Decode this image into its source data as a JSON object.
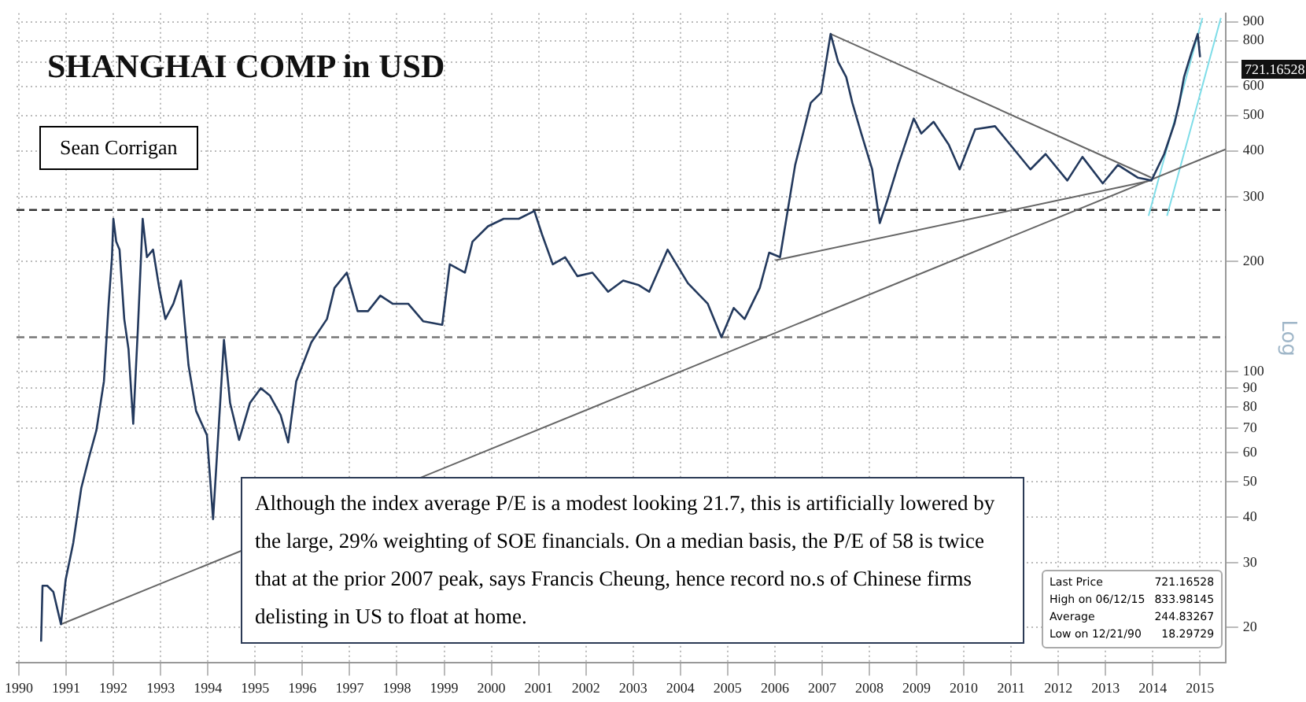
{
  "chart_data": {
    "type": "line",
    "title": "SHANGHAI COMP in USD",
    "ylabel": "Log",
    "annotations": [
      "Sean Corrigan",
      "Although the index average P/E is a modest looking 21.7, this is artificially lowered by the large, 29% weighting of SOE financials. On a median basis, the P/E of 58 is twice that at the prior 2007 peak, says Francis Cheung, hence record no.s of Chinese firms delisting in US to float at home.",
      "721.16528",
      "Last Price",
      "721.16528",
      "High on 06/12/15",
      "833.98145",
      "Average",
      "244.83267",
      "Low on 12/21/90",
      "18.29729"
    ],
    "log": "y",
    "grid": true,
    "legend": false,
    "marker": "none",
    "xlim": [
      1990.45,
      2016.04
    ],
    "xticks": [
      {
        "value": 1990.5,
        "label": "1990"
      },
      {
        "value": 1991.5,
        "label": "1991"
      },
      {
        "value": 1992.5,
        "label": "1992"
      },
      {
        "value": 1993.5,
        "label": "1993"
      },
      {
        "value": 1994.5,
        "label": "1994"
      },
      {
        "value": 1995.5,
        "label": "1995"
      },
      {
        "value": 1996.5,
        "label": "1996"
      },
      {
        "value": 1997.5,
        "label": "1997"
      },
      {
        "value": 1998.5,
        "label": "1998"
      },
      {
        "value": 1999.5,
        "label": "1999"
      },
      {
        "value": 2000.5,
        "label": "2000"
      },
      {
        "value": 2001.5,
        "label": "2001"
      },
      {
        "value": 2002.5,
        "label": "2002"
      },
      {
        "value": 2003.5,
        "label": "2003"
      },
      {
        "value": 2004.5,
        "label": "2004"
      },
      {
        "value": 2005.5,
        "label": "2005"
      },
      {
        "value": 2006.5,
        "label": "2006"
      },
      {
        "value": 2007.5,
        "label": "2007"
      },
      {
        "value": 2008.5,
        "label": "2008"
      },
      {
        "value": 2009.5,
        "label": "2009"
      },
      {
        "value": 2010.5,
        "label": "2010"
      },
      {
        "value": 2011.5,
        "label": "2011"
      },
      {
        "value": 2012.5,
        "label": "2012"
      },
      {
        "value": 2013.5,
        "label": "2013"
      },
      {
        "value": 2014.5,
        "label": "2014"
      },
      {
        "value": 2015.5,
        "label": "2015"
      }
    ],
    "ylim": [
      16,
      950
    ],
    "yticks": [
      20,
      30,
      40,
      50,
      60,
      70,
      80,
      90,
      100,
      200,
      300,
      400,
      500,
      600,
      {
        "value": 700,
        "label": null
      },
      800,
      900
    ],
    "ref_lines": [
      {
        "axis": "y",
        "value": 276,
        "color": "#333333",
        "line_style": "dashed"
      },
      {
        "axis": "y",
        "value": 124,
        "color": "#777777",
        "line_style": "dashed"
      }
    ],
    "series": [
      {
        "color": "#23395d",
        "x": [
          1990.97,
          1991.0,
          1991.1,
          1991.23,
          1991.39,
          1991.49,
          1991.65,
          1991.82,
          1991.98,
          1992.14,
          1992.3,
          1992.4,
          1992.47,
          1992.5,
          1992.56,
          1992.63,
          1992.73,
          1992.82,
          1992.92,
          1993.02,
          1993.12,
          1993.21,
          1993.34,
          1993.47,
          1993.6,
          1993.77,
          1993.93,
          1994.09,
          1994.25,
          1994.48,
          1994.61,
          1994.77,
          1994.84,
          1994.97,
          1995.16,
          1995.39,
          1995.62,
          1995.81,
          1996.04,
          1996.2,
          1996.37,
          1996.69,
          1997.02,
          1997.18,
          1997.44,
          1997.67,
          1997.89,
          1998.15,
          1998.41,
          1998.74,
          1999.06,
          1999.46,
          1999.62,
          1999.94,
          2000.1,
          2000.43,
          2000.76,
          2001.08,
          2001.41,
          2001.57,
          2001.8,
          2002.06,
          2002.32,
          2002.64,
          2002.97,
          2003.29,
          2003.62,
          2003.84,
          2004.23,
          2004.66,
          2005.08,
          2005.37,
          2005.63,
          2005.86,
          2006.18,
          2006.38,
          2006.61,
          2006.93,
          2007.26,
          2007.48,
          2007.68,
          2007.84,
          2008.01,
          2008.14,
          2008.33,
          2008.56,
          2008.72,
          2008.88,
          2009.11,
          2009.44,
          2009.6,
          2009.86,
          2010.18,
          2010.41,
          2010.74,
          2011.16,
          2011.48,
          2011.91,
          2012.23,
          2012.69,
          2013.01,
          2013.44,
          2013.76,
          2014.18,
          2014.47,
          2014.74,
          2014.96,
          2015.06,
          2015.16,
          2015.32,
          2015.45,
          2015.5
        ],
        "values": [
          18.3,
          26,
          26,
          25,
          20.4,
          27,
          34,
          48,
          58,
          69,
          94,
          153,
          205,
          261,
          226,
          215,
          139,
          115,
          72,
          132,
          261,
          205,
          215,
          169,
          139,
          153,
          177,
          104,
          78,
          67,
          39.5,
          86,
          122,
          82,
          65,
          82,
          90,
          86,
          76,
          64,
          94,
          120,
          139,
          169,
          186,
          146,
          146,
          161,
          153,
          153,
          137,
          134,
          196,
          186,
          226,
          249,
          261,
          261,
          274,
          237,
          196,
          205,
          182,
          186,
          165,
          177,
          172,
          165,
          215,
          174,
          153,
          124,
          149,
          139,
          169,
          211,
          205,
          366,
          541,
          577,
          834,
          700,
          636,
          541,
          446,
          356,
          254,
          293,
          366,
          490,
          446,
          480,
          416,
          356,
          458,
          467,
          416,
          356,
          392,
          332,
          385,
          326,
          366,
          338,
          332,
          392,
          476,
          541,
          636,
          743,
          834,
          721
        ]
      },
      {
        "color": "#666666",
        "x": [
          1991.39,
          2016.04
        ],
        "values": [
          20.4,
          404
        ]
      },
      {
        "color": "#666666",
        "x": [
          2006.51,
          2014.47
        ],
        "values": [
          201,
          332
        ]
      },
      {
        "color": "#666666",
        "x": [
          2007.68,
          2014.47
        ],
        "values": [
          834,
          338
        ]
      },
      {
        "color": "#7fdde8",
        "x": [
          2014.41,
          2015.55
        ],
        "values": [
          266,
          922
        ]
      },
      {
        "color": "#7fdde8",
        "x": [
          2014.8,
          2015.94
        ],
        "values": [
          266,
          922
        ]
      }
    ]
  }
}
